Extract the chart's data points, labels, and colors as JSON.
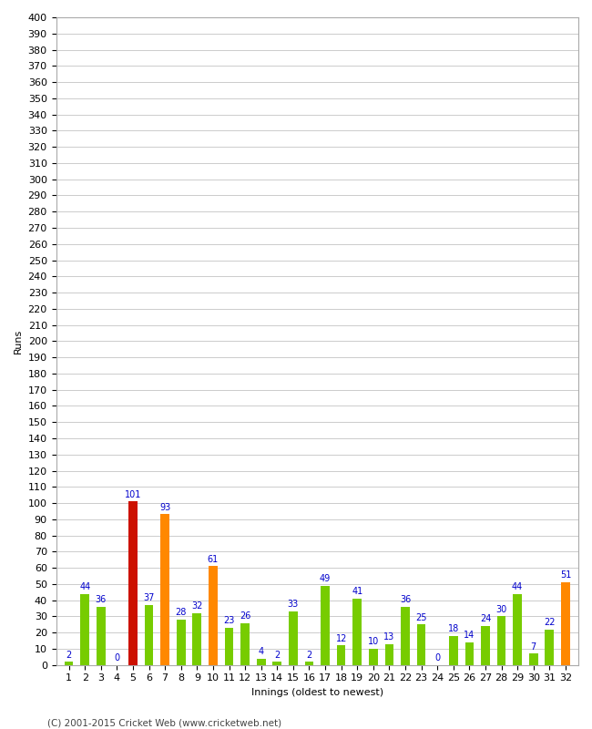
{
  "title": "",
  "xlabel": "Innings (oldest to newest)",
  "ylabel": "Runs",
  "footer": "(C) 2001-2015 Cricket Web (www.cricketweb.net)",
  "innings": [
    1,
    2,
    3,
    4,
    5,
    6,
    7,
    8,
    9,
    10,
    11,
    12,
    13,
    14,
    15,
    16,
    17,
    18,
    19,
    20,
    21,
    22,
    23,
    24,
    25,
    26,
    27,
    28,
    29,
    30,
    31,
    32
  ],
  "values": [
    2,
    44,
    36,
    0,
    101,
    37,
    93,
    28,
    32,
    61,
    23,
    26,
    4,
    2,
    33,
    2,
    49,
    12,
    41,
    10,
    13,
    36,
    25,
    0,
    18,
    14,
    24,
    30,
    44,
    7,
    22,
    51
  ],
  "colors": [
    "#77cc00",
    "#77cc00",
    "#77cc00",
    "#77cc00",
    "#cc1100",
    "#77cc00",
    "#ff8800",
    "#77cc00",
    "#77cc00",
    "#ff8800",
    "#77cc00",
    "#77cc00",
    "#77cc00",
    "#77cc00",
    "#77cc00",
    "#77cc00",
    "#77cc00",
    "#77cc00",
    "#77cc00",
    "#77cc00",
    "#77cc00",
    "#77cc00",
    "#77cc00",
    "#77cc00",
    "#77cc00",
    "#77cc00",
    "#77cc00",
    "#77cc00",
    "#77cc00",
    "#77cc00",
    "#77cc00",
    "#ff8800"
  ],
  "ylim": [
    0,
    400
  ],
  "yticks": [
    0,
    10,
    20,
    30,
    40,
    50,
    60,
    70,
    80,
    90,
    100,
    110,
    120,
    130,
    140,
    150,
    160,
    170,
    180,
    190,
    200,
    210,
    220,
    230,
    240,
    250,
    260,
    270,
    280,
    290,
    300,
    310,
    320,
    330,
    340,
    350,
    360,
    370,
    380,
    390,
    400
  ],
  "label_color": "#0000cc",
  "background_color": "#ffffff",
  "grid_color": "#cccccc",
  "axis_fontsize": 8,
  "label_fontsize": 7,
  "footer_fontsize": 7.5,
  "bar_width": 0.55
}
